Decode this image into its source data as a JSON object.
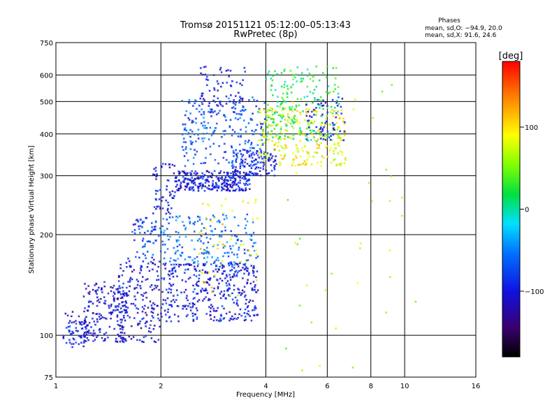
{
  "chart_data": {
    "type": "scatter",
    "title": "Tromsø 20151121 05:12:00–05:13:43",
    "subtitle": "RwPretec (8p)",
    "xlabel": "Frequency [MHz]",
    "ylabel": "Stationary phase Virtual Height [km]",
    "x_scale": "log",
    "y_scale": "log",
    "xlim": [
      1,
      16
    ],
    "ylim": [
      75,
      750
    ],
    "x_ticks": [
      1,
      2,
      4,
      6,
      8,
      10,
      16
    ],
    "x_tick_labels": [
      "1",
      "2",
      "4",
      "6",
      "8",
      "10",
      "16"
    ],
    "y_ticks": [
      75,
      100,
      200,
      300,
      400,
      500,
      600,
      750
    ],
    "y_tick_labels": [
      "75",
      "100",
      "200",
      "300",
      "400",
      "500",
      "600",
      "750"
    ],
    "grid": true,
    "phase_stats": {
      "heading": "Phases",
      "line_o": "mean, sd,O: −94.9, 20.0",
      "line_x": "mean, sd,X:  91.6, 24.6"
    },
    "colorbar": {
      "label": "[deg]",
      "range": [
        -180,
        180
      ],
      "ticks": [
        100,
        0,
        -100
      ],
      "tick_labels": [
        "100",
        "0",
        "−100"
      ],
      "colormap": "rainbow (black-purple-blue-cyan-green-yellow-red)"
    },
    "clusters": [
      {
        "f_range": [
          1.05,
          1.25
        ],
        "h_range": [
          92,
          118
        ],
        "phase": -100,
        "count": 70
      },
      {
        "f_range": [
          1.2,
          1.6
        ],
        "h_range": [
          95,
          145
        ],
        "phase": -105,
        "count": 180
      },
      {
        "f_range": [
          1.5,
          2.0
        ],
        "h_range": [
          95,
          170
        ],
        "phase": -105,
        "count": 180
      },
      {
        "f_range": [
          1.65,
          2.0
        ],
        "h_range": [
          170,
          225
        ],
        "phase": -80,
        "count": 60
      },
      {
        "f_range": [
          1.9,
          2.2
        ],
        "h_range": [
          230,
          330
        ],
        "phase": -100,
        "count": 60
      },
      {
        "f_range": [
          2.0,
          3.8
        ],
        "h_range": [
          110,
          165
        ],
        "phase": -100,
        "count": 380
      },
      {
        "f_range": [
          2.0,
          3.8
        ],
        "h_range": [
          160,
          230
        ],
        "phase": -60,
        "count": 200
      },
      {
        "f_range": [
          2.2,
          3.6
        ],
        "h_range": [
          270,
          310
        ],
        "phase": -100,
        "count": 280
      },
      {
        "f_range": [
          3.2,
          4.3
        ],
        "h_range": [
          300,
          360
        ],
        "phase": -95,
        "count": 120
      },
      {
        "f_range": [
          2.6,
          3.5
        ],
        "h_range": [
          450,
          640
        ],
        "phase": -100,
        "count": 80
      },
      {
        "f_range": [
          2.3,
          4.0
        ],
        "h_range": [
          320,
          520
        ],
        "phase": -70,
        "count": 220
      },
      {
        "f_range": [
          3.8,
          6.8
        ],
        "h_range": [
          320,
          480
        ],
        "phase": 90,
        "count": 260
      },
      {
        "f_range": [
          4.0,
          6.5
        ],
        "h_range": [
          380,
          640
        ],
        "phase": 20,
        "count": 200
      },
      {
        "f_range": [
          5.2,
          6.8
        ],
        "h_range": [
          380,
          520
        ],
        "phase": -100,
        "count": 60
      },
      {
        "f_range": [
          2.5,
          3.8
        ],
        "h_range": [
          130,
          260
        ],
        "phase": 100,
        "count": 50
      },
      {
        "f_range": [
          4.0,
          11.0
        ],
        "h_range": [
          78,
          600
        ],
        "phase": 60,
        "count": 45
      }
    ]
  }
}
